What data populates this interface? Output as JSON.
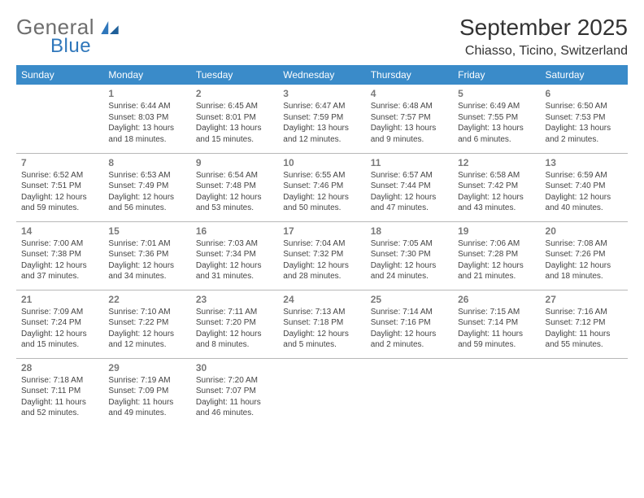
{
  "brand": {
    "word1": "General",
    "word2": "Blue",
    "color_gray": "#6e6e6e",
    "color_blue": "#2f77bb"
  },
  "header": {
    "month_title": "September 2025",
    "location": "Chiasso, Ticino, Switzerland"
  },
  "theme": {
    "header_bg": "#3a8bc9",
    "header_fg": "#ffffff",
    "rule": "#b8b8b8",
    "text": "#444444",
    "daynum": "#7a7a7a"
  },
  "weekdays": [
    "Sunday",
    "Monday",
    "Tuesday",
    "Wednesday",
    "Thursday",
    "Friday",
    "Saturday"
  ],
  "weeks": [
    [
      null,
      {
        "n": "1",
        "sr": "Sunrise: 6:44 AM",
        "ss": "Sunset: 8:03 PM",
        "dl": "Daylight: 13 hours and 18 minutes."
      },
      {
        "n": "2",
        "sr": "Sunrise: 6:45 AM",
        "ss": "Sunset: 8:01 PM",
        "dl": "Daylight: 13 hours and 15 minutes."
      },
      {
        "n": "3",
        "sr": "Sunrise: 6:47 AM",
        "ss": "Sunset: 7:59 PM",
        "dl": "Daylight: 13 hours and 12 minutes."
      },
      {
        "n": "4",
        "sr": "Sunrise: 6:48 AM",
        "ss": "Sunset: 7:57 PM",
        "dl": "Daylight: 13 hours and 9 minutes."
      },
      {
        "n": "5",
        "sr": "Sunrise: 6:49 AM",
        "ss": "Sunset: 7:55 PM",
        "dl": "Daylight: 13 hours and 6 minutes."
      },
      {
        "n": "6",
        "sr": "Sunrise: 6:50 AM",
        "ss": "Sunset: 7:53 PM",
        "dl": "Daylight: 13 hours and 2 minutes."
      }
    ],
    [
      {
        "n": "7",
        "sr": "Sunrise: 6:52 AM",
        "ss": "Sunset: 7:51 PM",
        "dl": "Daylight: 12 hours and 59 minutes."
      },
      {
        "n": "8",
        "sr": "Sunrise: 6:53 AM",
        "ss": "Sunset: 7:49 PM",
        "dl": "Daylight: 12 hours and 56 minutes."
      },
      {
        "n": "9",
        "sr": "Sunrise: 6:54 AM",
        "ss": "Sunset: 7:48 PM",
        "dl": "Daylight: 12 hours and 53 minutes."
      },
      {
        "n": "10",
        "sr": "Sunrise: 6:55 AM",
        "ss": "Sunset: 7:46 PM",
        "dl": "Daylight: 12 hours and 50 minutes."
      },
      {
        "n": "11",
        "sr": "Sunrise: 6:57 AM",
        "ss": "Sunset: 7:44 PM",
        "dl": "Daylight: 12 hours and 47 minutes."
      },
      {
        "n": "12",
        "sr": "Sunrise: 6:58 AM",
        "ss": "Sunset: 7:42 PM",
        "dl": "Daylight: 12 hours and 43 minutes."
      },
      {
        "n": "13",
        "sr": "Sunrise: 6:59 AM",
        "ss": "Sunset: 7:40 PM",
        "dl": "Daylight: 12 hours and 40 minutes."
      }
    ],
    [
      {
        "n": "14",
        "sr": "Sunrise: 7:00 AM",
        "ss": "Sunset: 7:38 PM",
        "dl": "Daylight: 12 hours and 37 minutes."
      },
      {
        "n": "15",
        "sr": "Sunrise: 7:01 AM",
        "ss": "Sunset: 7:36 PM",
        "dl": "Daylight: 12 hours and 34 minutes."
      },
      {
        "n": "16",
        "sr": "Sunrise: 7:03 AM",
        "ss": "Sunset: 7:34 PM",
        "dl": "Daylight: 12 hours and 31 minutes."
      },
      {
        "n": "17",
        "sr": "Sunrise: 7:04 AM",
        "ss": "Sunset: 7:32 PM",
        "dl": "Daylight: 12 hours and 28 minutes."
      },
      {
        "n": "18",
        "sr": "Sunrise: 7:05 AM",
        "ss": "Sunset: 7:30 PM",
        "dl": "Daylight: 12 hours and 24 minutes."
      },
      {
        "n": "19",
        "sr": "Sunrise: 7:06 AM",
        "ss": "Sunset: 7:28 PM",
        "dl": "Daylight: 12 hours and 21 minutes."
      },
      {
        "n": "20",
        "sr": "Sunrise: 7:08 AM",
        "ss": "Sunset: 7:26 PM",
        "dl": "Daylight: 12 hours and 18 minutes."
      }
    ],
    [
      {
        "n": "21",
        "sr": "Sunrise: 7:09 AM",
        "ss": "Sunset: 7:24 PM",
        "dl": "Daylight: 12 hours and 15 minutes."
      },
      {
        "n": "22",
        "sr": "Sunrise: 7:10 AM",
        "ss": "Sunset: 7:22 PM",
        "dl": "Daylight: 12 hours and 12 minutes."
      },
      {
        "n": "23",
        "sr": "Sunrise: 7:11 AM",
        "ss": "Sunset: 7:20 PM",
        "dl": "Daylight: 12 hours and 8 minutes."
      },
      {
        "n": "24",
        "sr": "Sunrise: 7:13 AM",
        "ss": "Sunset: 7:18 PM",
        "dl": "Daylight: 12 hours and 5 minutes."
      },
      {
        "n": "25",
        "sr": "Sunrise: 7:14 AM",
        "ss": "Sunset: 7:16 PM",
        "dl": "Daylight: 12 hours and 2 minutes."
      },
      {
        "n": "26",
        "sr": "Sunrise: 7:15 AM",
        "ss": "Sunset: 7:14 PM",
        "dl": "Daylight: 11 hours and 59 minutes."
      },
      {
        "n": "27",
        "sr": "Sunrise: 7:16 AM",
        "ss": "Sunset: 7:12 PM",
        "dl": "Daylight: 11 hours and 55 minutes."
      }
    ],
    [
      {
        "n": "28",
        "sr": "Sunrise: 7:18 AM",
        "ss": "Sunset: 7:11 PM",
        "dl": "Daylight: 11 hours and 52 minutes."
      },
      {
        "n": "29",
        "sr": "Sunrise: 7:19 AM",
        "ss": "Sunset: 7:09 PM",
        "dl": "Daylight: 11 hours and 49 minutes."
      },
      {
        "n": "30",
        "sr": "Sunrise: 7:20 AM",
        "ss": "Sunset: 7:07 PM",
        "dl": "Daylight: 11 hours and 46 minutes."
      },
      null,
      null,
      null,
      null
    ]
  ]
}
